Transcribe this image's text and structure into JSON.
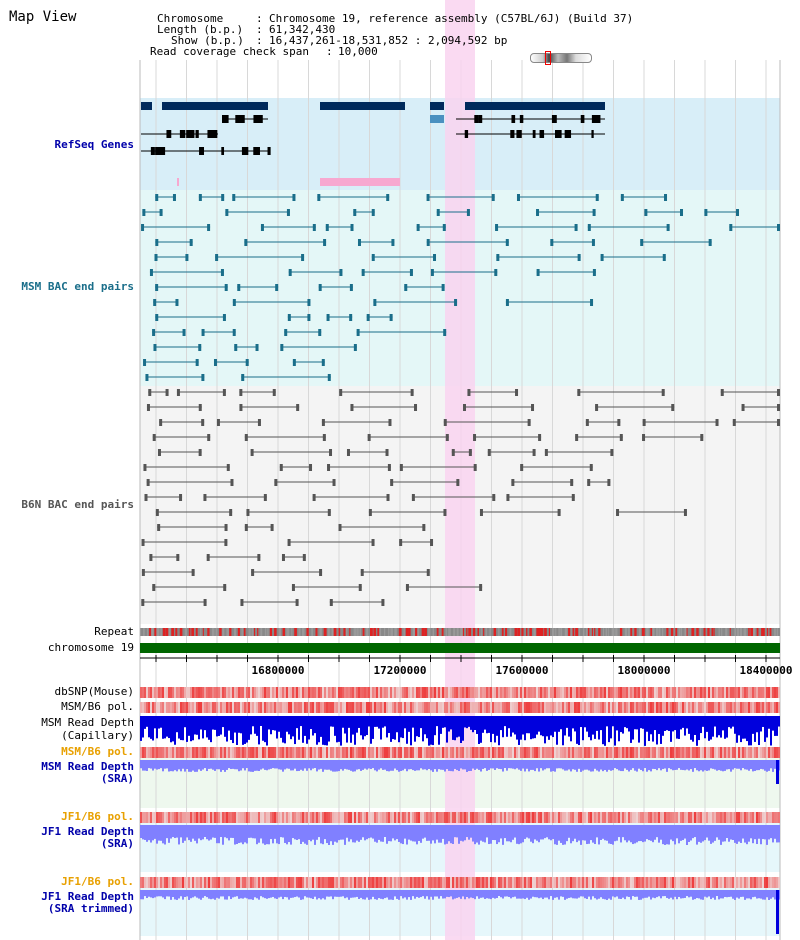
{
  "page": {
    "title": "Map View"
  },
  "header": {
    "chromosome_label": "Chromosome",
    "chromosome_value": "Chromosome 19, reference assembly (C57BL/6J) (Build 37)",
    "length_label": "Length (b.p.)",
    "length_value": "61,342,430",
    "show_label": "Show (b.p.)",
    "show_value": "16,437,261-18,531,852 : 2,094,592 bp",
    "coverage_label": "Read coverage check span",
    "coverage_value": "10,000"
  },
  "tracks": {
    "refseq": "RefSeq Genes",
    "msm_bac": "MSM BAC end pairs",
    "b6n_bac": "B6N BAC end pairs",
    "repeat": "Repeat",
    "chromosome": "chromosome 19",
    "dbsnp": "dbSNP(Mouse)",
    "msm_pol_1": "MSM/B6 pol.",
    "msm_depth_cap_1": "MSM Read Depth",
    "msm_depth_cap_2": "(Capillary)",
    "msm_pol_2": "MSM/B6 pol.",
    "msm_depth_sra_1": "MSM Read Depth",
    "msm_depth_sra_2": "(SRA)",
    "jf1_pol_1": "JF1/B6 pol.",
    "jf1_depth_1": "JF1 Read Depth",
    "jf1_depth_2": "(SRA)",
    "jf1_pol_2": "JF1/B6 pol.",
    "jf1_trim_1": "JF1 Read Depth",
    "jf1_trim_2": "(SRA trimmed)"
  },
  "axis": {
    "ticks": [
      "16800000",
      "17200000",
      "17600000",
      "18000000",
      "18400000"
    ]
  },
  "colors": {
    "gene": "#002a5c",
    "refseq_bg": "#d8eef8",
    "msm_bg": "#e4f7f7",
    "msm_line": "#1a6e8a",
    "b6n_bg": "#f4f4f4",
    "b6n_line": "#555555",
    "highlight": "#f9d4f0",
    "chromosome": "#006600",
    "depth_blue": "#0000dd",
    "depth_sra": "#8080ff",
    "snp_red": "#ee3333"
  }
}
